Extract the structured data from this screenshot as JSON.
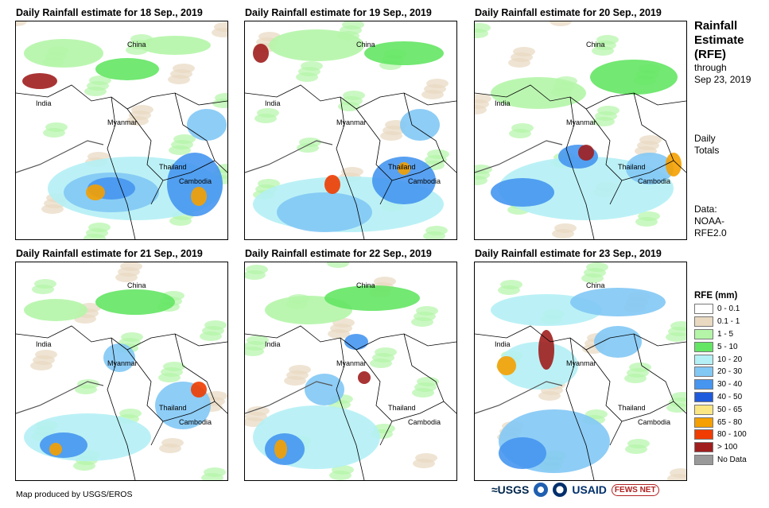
{
  "panels": [
    {
      "title": "Daily Rainfall estimate for 18 Sep., 2019",
      "labels": {
        "china": "China",
        "india": "India",
        "myanmar": "Myanmar",
        "thailand": "Thailand",
        "cambodia": "Cambodia"
      }
    },
    {
      "title": "Daily Rainfall estimate for 19 Sep., 2019",
      "labels": {
        "china": "China",
        "india": "India",
        "myanmar": "Myanmar",
        "thailand": "Thailand",
        "cambodia": "Cambodia"
      }
    },
    {
      "title": "Daily Rainfall estimate for 20 Sep., 2019",
      "labels": {
        "china": "China",
        "india": "India",
        "myanmar": "Myanmar",
        "thailand": "Thailand",
        "cambodia": "Cambodia"
      }
    },
    {
      "title": "Daily Rainfall estimate for 21 Sep., 2019",
      "labels": {
        "china": "China",
        "india": "India",
        "myanmar": "Myanmar",
        "thailand": "Thailand",
        "cambodia": "Cambodia"
      }
    },
    {
      "title": "Daily Rainfall estimate for 22 Sep., 2019",
      "labels": {
        "china": "China",
        "india": "India",
        "myanmar": "Myanmar",
        "thailand": "Thailand",
        "cambodia": "Cambodia"
      }
    },
    {
      "title": "Daily Rainfall estimate for 23 Sep., 2019",
      "labels": {
        "china": "China",
        "india": "India",
        "myanmar": "Myanmar",
        "thailand": "Thailand",
        "cambodia": "Cambodia"
      }
    }
  ],
  "sidebar": {
    "title_line1": "Rainfall",
    "title_line2": "Estimate",
    "title_line3": "(RFE)",
    "through": "through",
    "date": "Sep 23, 2019",
    "daily1": "Daily",
    "daily2": "Totals",
    "data1": "Data:",
    "data2": "NOAA-",
    "data3": "RFE2.0"
  },
  "legend": {
    "title": "RFE (mm)",
    "items": [
      {
        "label": "0 - 0.1",
        "color": "#ffffff"
      },
      {
        "label": "0.1 - 1",
        "color": "#e8d9c0"
      },
      {
        "label": "1 - 5",
        "color": "#b4f5a8"
      },
      {
        "label": "5 - 10",
        "color": "#64e664"
      },
      {
        "label": "10 - 20",
        "color": "#b4f0f5"
      },
      {
        "label": "20 - 30",
        "color": "#82c8f5"
      },
      {
        "label": "30 - 40",
        "color": "#4696f0"
      },
      {
        "label": "40 - 50",
        "color": "#1e5adc"
      },
      {
        "label": "50 - 65",
        "color": "#fae682"
      },
      {
        "label": "65 - 80",
        "color": "#f5a000"
      },
      {
        "label": "80 - 100",
        "color": "#f03c00"
      },
      {
        "label": "> 100",
        "color": "#a01e1e"
      },
      {
        "label": "No Data",
        "color": "#999999"
      }
    ]
  },
  "footer": {
    "credit": "Map produced by USGS/EROS",
    "usgs": "≈USGS",
    "usaid": "USAID",
    "fews": "FEWS NET"
  }
}
